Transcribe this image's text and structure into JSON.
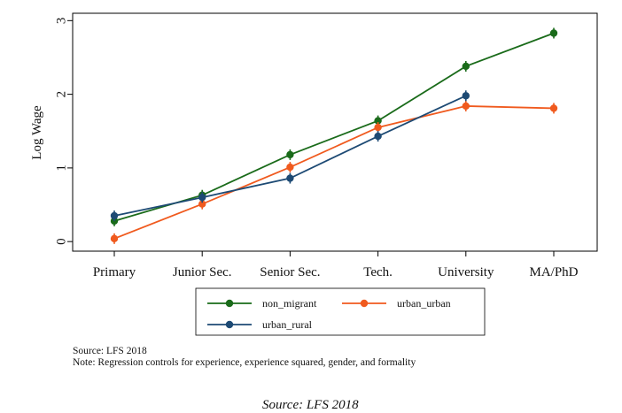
{
  "chart_data": {
    "type": "line",
    "categories": [
      "Primary",
      "Junior Sec.",
      "Senior Sec.",
      "Tech.",
      "University",
      "MA/PhD"
    ],
    "series": [
      {
        "name": "non_migrant",
        "color": "#1a6b1a",
        "values": [
          0.28,
          0.63,
          1.18,
          1.64,
          2.38,
          2.83
        ]
      },
      {
        "name": "urban_urban",
        "color": "#f05a1e",
        "values": [
          0.04,
          0.51,
          1.01,
          1.55,
          1.84,
          1.81
        ]
      },
      {
        "name": "urban_rural",
        "color": "#1d4a74",
        "values": [
          0.35,
          0.6,
          0.86,
          1.43,
          1.98,
          null
        ]
      }
    ],
    "ylabel": "Log Wage",
    "xlabel": "",
    "ylim": [
      -0.13,
      3.1
    ],
    "yticks": [
      0,
      1,
      2,
      3
    ],
    "legend": "bottom",
    "grid": false
  },
  "notes": {
    "source": "Source: LFS 2018",
    "note": "Note: Regression controls for experience, experience squared, gender, and formality"
  },
  "caption": "Source: LFS 2018"
}
